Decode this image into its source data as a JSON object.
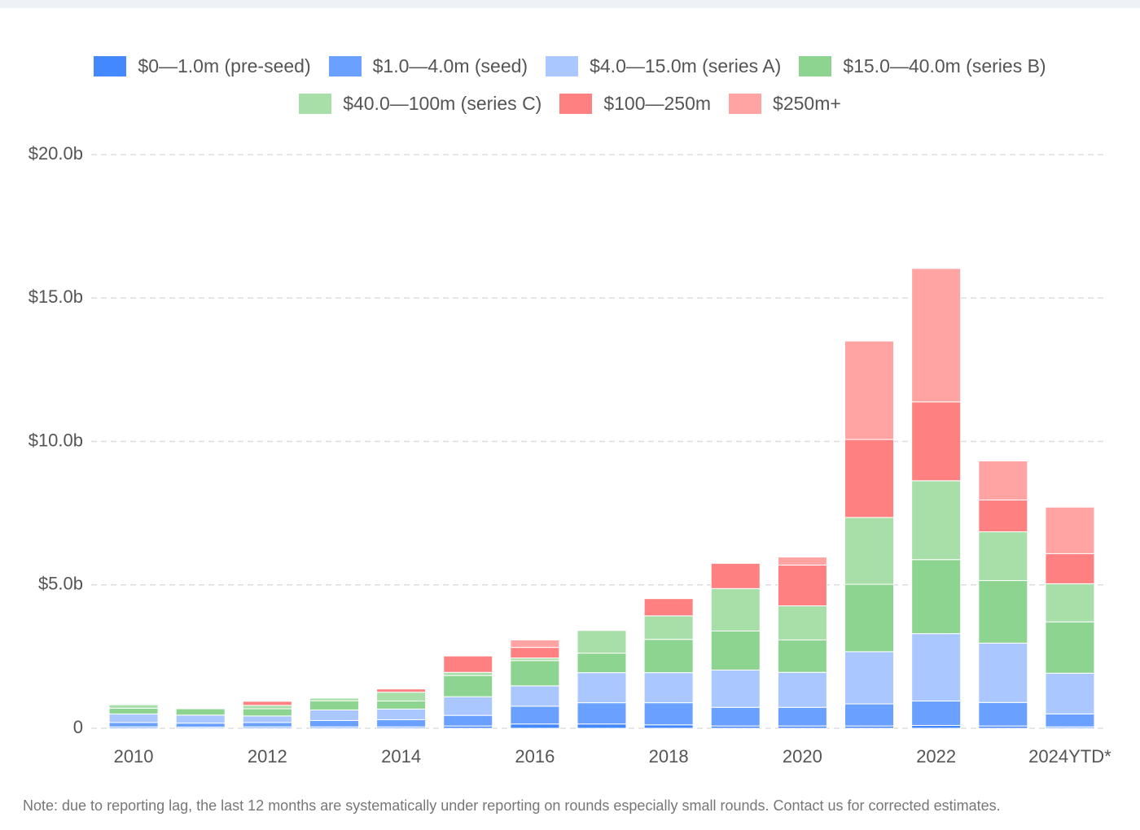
{
  "chart_data": {
    "type": "stacked_bar",
    "categories": [
      "2010",
      null,
      "2012",
      null,
      "2014",
      null,
      "2016",
      null,
      "2018",
      null,
      "2020",
      null,
      "2022",
      null,
      "2024YTD*"
    ],
    "series": [
      {
        "name": "$0—1.0m (pre-seed)",
        "color": "#4488ff",
        "values": [
          0.05,
          0.04,
          0.05,
          0.05,
          0.05,
          0.08,
          0.15,
          0.15,
          0.12,
          0.08,
          0.08,
          0.08,
          0.1,
          0.08,
          0.05
        ]
      },
      {
        "name": "$1.0—4.0m (seed)",
        "color": "#6aa0ff",
        "values": [
          0.15,
          0.14,
          0.15,
          0.22,
          0.25,
          0.37,
          0.62,
          0.74,
          0.77,
          0.65,
          0.65,
          0.77,
          0.85,
          0.82,
          0.45
        ]
      },
      {
        "name": "$4.0—15.0m (series A)",
        "color": "#aac8ff",
        "values": [
          0.3,
          0.28,
          0.23,
          0.37,
          0.37,
          0.65,
          0.71,
          1.05,
          1.05,
          1.3,
          1.22,
          1.82,
          2.35,
          2.07,
          1.42
        ]
      },
      {
        "name": "$15.0—40.0m (series B)",
        "color": "#8cd48f",
        "values": [
          0.2,
          0.22,
          0.25,
          0.32,
          0.28,
          0.74,
          0.88,
          0.68,
          1.16,
          1.36,
          1.13,
          2.35,
          2.58,
          2.18,
          1.79
        ]
      },
      {
        "name": "$40.0—100m (series C)",
        "color": "#a8dea8",
        "values": [
          0.12,
          0.03,
          0.12,
          0.09,
          0.31,
          0.11,
          0.09,
          0.79,
          0.82,
          1.48,
          1.19,
          2.33,
          2.75,
          1.7,
          1.33
        ]
      },
      {
        "name": "$100—250m",
        "color": "#ff8080",
        "values": [
          0,
          0,
          0.14,
          0,
          0.11,
          0.57,
          0.37,
          0,
          0.6,
          0.88,
          1.42,
          2.72,
          2.75,
          1.11,
          1.05
        ]
      },
      {
        "name": "$250m+",
        "color": "#ffa3a3",
        "values": [
          0,
          0,
          0,
          0,
          0,
          0,
          0.26,
          0,
          0,
          0,
          0.28,
          3.43,
          4.65,
          1.36,
          1.62
        ]
      }
    ],
    "ylim": [
      0,
      20
    ],
    "yticks": [
      0,
      {
        "value": 5,
        "label": "$5.0b"
      },
      {
        "value": 10,
        "label": "$10.0b"
      },
      {
        "value": 15,
        "label": "$15.0b"
      },
      {
        "value": 20,
        "label": "$20.0b"
      }
    ],
    "grid": true,
    "note": "Note: due to reporting lag, the last 12 months are systematically under reporting on rounds especially small rounds. Contact us for corrected estimates."
  }
}
